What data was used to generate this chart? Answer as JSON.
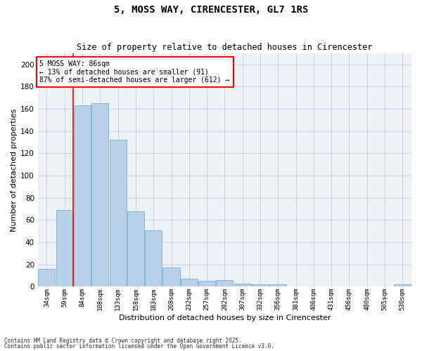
{
  "title": "5, MOSS WAY, CIRENCESTER, GL7 1RS",
  "subtitle": "Size of property relative to detached houses in Cirencester",
  "xlabel": "Distribution of detached houses by size in Cirencester",
  "ylabel": "Number of detached properties",
  "categories": [
    "34sqm",
    "59sqm",
    "84sqm",
    "108sqm",
    "133sqm",
    "158sqm",
    "183sqm",
    "208sqm",
    "232sqm",
    "257sqm",
    "282sqm",
    "307sqm",
    "332sqm",
    "356sqm",
    "381sqm",
    "406sqm",
    "431sqm",
    "456sqm",
    "480sqm",
    "505sqm",
    "530sqm"
  ],
  "values": [
    16,
    69,
    163,
    165,
    132,
    68,
    51,
    17,
    7,
    5,
    6,
    3,
    2,
    2,
    0,
    0,
    0,
    0,
    0,
    0,
    2
  ],
  "bar_color": "#b8d0e8",
  "bar_edge_color": "#7aafd4",
  "red_line_x": 1.5,
  "annotation_title": "5 MOSS WAY: 86sqm",
  "annotation_line1": "← 13% of detached houses are smaller (91)",
  "annotation_line2": "87% of semi-detached houses are larger (612) →",
  "ylim": [
    0,
    210
  ],
  "yticks": [
    0,
    20,
    40,
    60,
    80,
    100,
    120,
    140,
    160,
    180,
    200
  ],
  "footnote1": "Contains HM Land Registry data © Crown copyright and database right 2025.",
  "footnote2": "Contains public sector information licensed under the Open Government Licence v3.0.",
  "bg_color": "#eef2f7",
  "grid_color": "#c5d5e5",
  "title_fontsize": 10,
  "subtitle_fontsize": 8.5,
  "label_fontsize": 8
}
